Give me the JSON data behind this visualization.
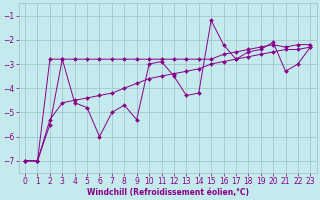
{
  "xlabel": "Windchill (Refroidissement éolien,°C)",
  "bg_color": "#c5eaed",
  "line_color": "#880088",
  "grid_color": "#9dbfc4",
  "x": [
    0,
    1,
    2,
    3,
    4,
    5,
    6,
    7,
    8,
    9,
    10,
    11,
    12,
    13,
    14,
    15,
    16,
    17,
    18,
    19,
    20,
    21,
    22,
    23
  ],
  "y_flat": [
    -7.0,
    -7.0,
    -2.8,
    -2.8,
    -2.8,
    -2.8,
    -2.8,
    -2.8,
    -2.8,
    -2.8,
    -2.8,
    -2.8,
    -2.8,
    -2.8,
    -2.8,
    -2.8,
    -2.6,
    -2.5,
    -2.4,
    -2.3,
    -2.2,
    -2.3,
    -2.2,
    -2.2
  ],
  "y_diag": [
    -7.0,
    -7.0,
    -5.3,
    -4.6,
    -4.5,
    -4.4,
    -4.3,
    -4.2,
    -4.0,
    -3.8,
    -3.6,
    -3.5,
    -3.4,
    -3.3,
    -3.2,
    -3.0,
    -2.9,
    -2.8,
    -2.7,
    -2.6,
    -2.5,
    -2.4,
    -2.4,
    -2.3
  ],
  "y_jagged": [
    -7.0,
    -7.0,
    -5.5,
    -2.8,
    -4.6,
    -4.8,
    -6.0,
    -5.0,
    -4.7,
    -5.3,
    -3.0,
    -2.9,
    -3.5,
    -4.3,
    -4.2,
    -1.2,
    -2.2,
    -2.8,
    -2.5,
    -2.4,
    -2.1,
    -3.3,
    -3.0,
    -2.3
  ],
  "ylim": [
    -7.5,
    -0.5
  ],
  "xlim": [
    -0.5,
    23.5
  ],
  "yticks": [
    -7,
    -6,
    -5,
    -4,
    -3,
    -2,
    -1
  ],
  "xticks": [
    0,
    1,
    2,
    3,
    4,
    5,
    6,
    7,
    8,
    9,
    10,
    11,
    12,
    13,
    14,
    15,
    16,
    17,
    18,
    19,
    20,
    21,
    22,
    23
  ],
  "xlabel_fontsize": 5.5,
  "tick_fontsize": 5.5
}
